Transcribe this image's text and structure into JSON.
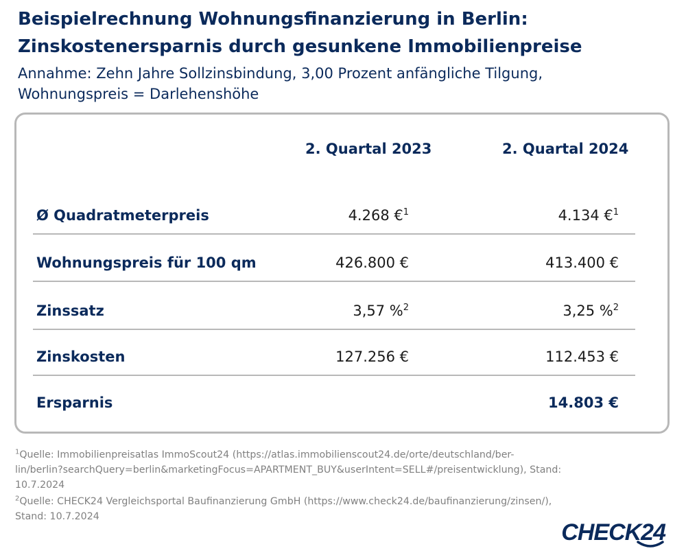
{
  "title_lines": [
    "Beispielrechnung Wohnungsfinanzierung in Berlin:",
    "Zinskostenersparnis durch gesunkene Immobilienpreise"
  ],
  "subtitle_lines": [
    "Annahme: Zehn Jahre Sollzinsbindung, 3,00 Prozent anfängliche Tilgung,",
    "Wohnungspreis = Darlehenshöhe"
  ],
  "chart_data": {
    "type": "table",
    "columns": [
      "2. Quartal 2023",
      "2. Quartal 2024"
    ],
    "rows": [
      {
        "label": "Ø Quadratmeterpreis",
        "values": [
          "4.268 €",
          "4.134 €"
        ],
        "footnote": "1"
      },
      {
        "label": "Wohnungspreis für 100 qm",
        "values": [
          "426.800 €",
          "413.400 €"
        ],
        "footnote": ""
      },
      {
        "label": "Zinssatz",
        "values": [
          "3,57 %",
          "3,25 %"
        ],
        "footnote": "2"
      },
      {
        "label": "Zinskosten",
        "values": [
          "127.256 €",
          "112.453 €"
        ],
        "footnote": ""
      },
      {
        "label": "Ersparnis",
        "values": [
          "",
          "14.803 €"
        ],
        "footnote": ""
      }
    ]
  },
  "footnotes": [
    {
      "mark": "1",
      "lines": [
        "Quelle: Immobilienpreisatlas ImmoScout24 (https://atlas.immobilienscout24.de/orte/deutschland/ber-",
        "lin/berlin?searchQuery=berlin&marketingFocus=APARTMENT_BUY&userIntent=SELL#/preisentwicklung), Stand:",
        "10.7.2024"
      ]
    },
    {
      "mark": "2",
      "lines": [
        "Quelle: CHECK24 Vergleichsportal Baufinanzierung GmbH (https://www.check24.de/baufinanzierung/zinsen/),",
        "Stand: 10.7.2024"
      ]
    }
  ],
  "logo": {
    "text": "CHECK24",
    "icon": "check24-swoosh-icon"
  },
  "colors": {
    "brand_navy": "#0b2a5b",
    "border_gray": "#b8b8b8",
    "footnote_gray": "#808080"
  }
}
